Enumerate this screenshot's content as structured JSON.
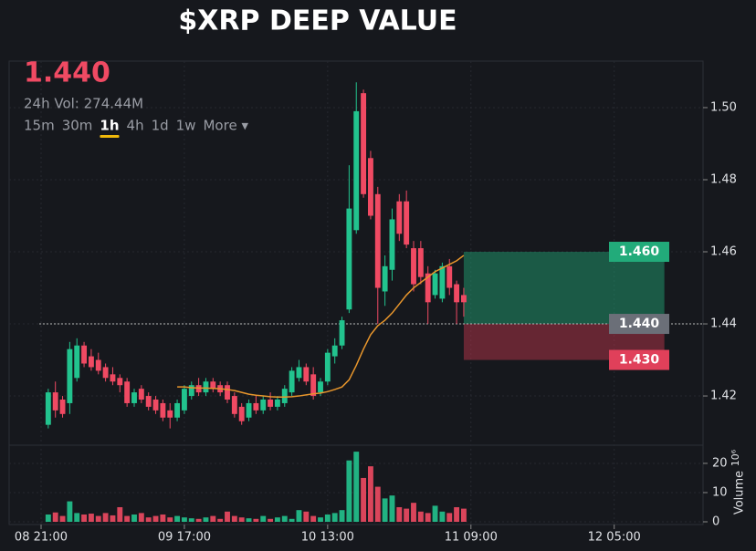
{
  "header": {
    "price": "1.440",
    "volume": "24h Vol: 274.44M",
    "timeframes": [
      "15m",
      "30m",
      "1h",
      "4h",
      "1d",
      "1w",
      "More ▾"
    ],
    "selected": "1h"
  },
  "chart_data": {
    "type": "candlestick",
    "title": "$XRP DEEP VALUE",
    "x": [
      1,
      2,
      3,
      4,
      5,
      6,
      7,
      8,
      9,
      10,
      11,
      12,
      13,
      14,
      15,
      16,
      17,
      18,
      19,
      20,
      21,
      22,
      23,
      24,
      25,
      26,
      27,
      28,
      29,
      30,
      31,
      32,
      33,
      34,
      35,
      36,
      37,
      38,
      39,
      40,
      41,
      42,
      43,
      44,
      45,
      46,
      47,
      48,
      49,
      50,
      51,
      52,
      53,
      54,
      55,
      56,
      57,
      58,
      59
    ],
    "open": [
      1.412,
      1.421,
      1.419,
      1.418,
      1.425,
      1.434,
      1.431,
      1.43,
      1.428,
      1.426,
      1.425,
      1.424,
      1.418,
      1.422,
      1.42,
      1.419,
      1.418,
      1.416,
      1.414,
      1.416,
      1.42,
      1.423,
      1.421,
      1.424,
      1.423,
      1.423,
      1.42,
      1.417,
      1.414,
      1.418,
      1.416,
      1.419,
      1.417,
      1.418,
      1.421,
      1.425,
      1.428,
      1.426,
      1.421,
      1.424,
      1.431,
      1.434,
      1.444,
      1.466,
      1.504,
      1.486,
      1.476,
      1.449,
      1.455,
      1.474,
      1.474,
      1.461,
      1.461,
      1.454,
      1.448,
      1.447,
      1.456,
      1.451,
      1.448
    ],
    "high": [
      1.422,
      1.424,
      1.42,
      1.435,
      1.436,
      1.435,
      1.433,
      1.432,
      1.429,
      1.428,
      1.426,
      1.425,
      1.422,
      1.423,
      1.421,
      1.42,
      1.419,
      1.418,
      1.419,
      1.423,
      1.424,
      1.425,
      1.425,
      1.425,
      1.424,
      1.424,
      1.421,
      1.418,
      1.419,
      1.42,
      1.42,
      1.421,
      1.42,
      1.423,
      1.428,
      1.43,
      1.429,
      1.428,
      1.425,
      1.433,
      1.436,
      1.442,
      1.484,
      1.507,
      1.505,
      1.488,
      1.478,
      1.459,
      1.472,
      1.476,
      1.477,
      1.463,
      1.463,
      1.456,
      1.455,
      1.457,
      1.458,
      1.452,
      1.45
    ],
    "low": [
      1.411,
      1.414,
      1.414,
      1.415,
      1.424,
      1.428,
      1.427,
      1.426,
      1.424,
      1.423,
      1.421,
      1.417,
      1.417,
      1.418,
      1.416,
      1.415,
      1.413,
      1.411,
      1.413,
      1.415,
      1.419,
      1.42,
      1.42,
      1.421,
      1.42,
      1.418,
      1.414,
      1.412,
      1.413,
      1.415,
      1.415,
      1.416,
      1.416,
      1.417,
      1.42,
      1.424,
      1.423,
      1.419,
      1.42,
      1.423,
      1.429,
      1.433,
      1.443,
      1.465,
      1.475,
      1.469,
      1.44,
      1.445,
      1.452,
      1.463,
      1.461,
      1.449,
      1.451,
      1.44,
      1.447,
      1.446,
      1.448,
      1.44,
      1.442
    ],
    "close": [
      1.421,
      1.416,
      1.415,
      1.433,
      1.434,
      1.429,
      1.428,
      1.427,
      1.425,
      1.424,
      1.423,
      1.418,
      1.421,
      1.419,
      1.417,
      1.416,
      1.414,
      1.414,
      1.418,
      1.422,
      1.423,
      1.421,
      1.424,
      1.422,
      1.421,
      1.419,
      1.415,
      1.413,
      1.418,
      1.416,
      1.419,
      1.417,
      1.419,
      1.422,
      1.427,
      1.428,
      1.424,
      1.42,
      1.424,
      1.432,
      1.434,
      1.441,
      1.472,
      1.499,
      1.476,
      1.47,
      1.45,
      1.456,
      1.469,
      1.465,
      1.462,
      1.451,
      1.453,
      1.446,
      1.454,
      1.456,
      1.45,
      1.446,
      1.446
    ],
    "ma": [
      null,
      null,
      null,
      null,
      null,
      null,
      null,
      null,
      null,
      null,
      null,
      null,
      null,
      null,
      null,
      null,
      null,
      null,
      1.4225,
      1.4225,
      1.4223,
      1.4222,
      1.4222,
      1.4221,
      1.422,
      1.4218,
      1.4215,
      1.421,
      1.4205,
      1.4202,
      1.42,
      1.4198,
      1.4197,
      1.4197,
      1.4198,
      1.42,
      1.4203,
      1.4206,
      1.4208,
      1.4212,
      1.4218,
      1.4225,
      1.4245,
      1.4285,
      1.433,
      1.437,
      1.4395,
      1.441,
      1.443,
      1.4455,
      1.448,
      1.45,
      1.4515,
      1.453,
      1.4545,
      1.4555,
      1.4565,
      1.4575,
      1.459
    ],
    "ma_color": "#e8962c",
    "up_color": "#22c38e",
    "down_color": "#f04a63",
    "xlim": [
      -4.46,
      92.4
    ],
    "xticks": [
      {
        "value": 0,
        "label": "08 21:00"
      },
      {
        "value": 20,
        "label": "09 17:00"
      },
      {
        "value": 40,
        "label": "10 13:00"
      },
      {
        "value": 60,
        "label": "11 09:00"
      },
      {
        "value": 80,
        "label": "12 05:00"
      }
    ],
    "ylim": [
      1.4066,
      1.5129
    ],
    "yticks": [
      1.42,
      1.44,
      1.46,
      1.48,
      {
        "value": 1.5,
        "label": "1.50"
      }
    ],
    "grid": true,
    "position": {
      "start": 59,
      "end": 87,
      "target": {
        "value": 1.46,
        "label": "1.460"
      },
      "entry": {
        "value": 1.44,
        "label": "1.440"
      },
      "stop": {
        "value": 1.43,
        "label": "1.430"
      }
    },
    "volume": {
      "values": [
        2.5,
        3.2,
        2.0,
        7.0,
        3.0,
        2.5,
        2.8,
        2.0,
        3.0,
        2.2,
        5.0,
        2.0,
        2.5,
        3.0,
        1.5,
        2.0,
        2.5,
        1.5,
        2.0,
        1.5,
        1.2,
        1.0,
        1.5,
        2.0,
        1.0,
        3.5,
        2.0,
        1.5,
        1.2,
        1.0,
        2.0,
        1.0,
        1.5,
        2.0,
        1.0,
        4.0,
        3.5,
        2.0,
        1.5,
        2.5,
        3.0,
        4.0,
        21.0,
        24.0,
        15.0,
        19.0,
        12.0,
        8.0,
        9.0,
        5.0,
        4.5,
        6.5,
        3.5,
        3.0,
        5.5,
        3.5,
        3.0,
        5.0,
        4.5
      ],
      "ylim": [
        0,
        25.6
      ],
      "yticks": [
        0,
        10,
        20
      ],
      "ylabel": "Volume",
      "ylabel_unit": "10⁶"
    }
  }
}
